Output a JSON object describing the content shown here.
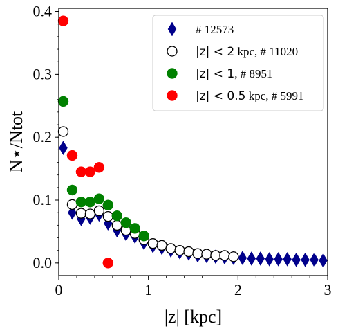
{
  "chart_data": {
    "type": "scatter",
    "xlabel": "|z| [kpc]",
    "ylabel": "N⋆/Ntot",
    "xlim": [
      0,
      3
    ],
    "ylim": [
      -0.02,
      0.405
    ],
    "xticks": [
      "0",
      "1",
      "2",
      "3"
    ],
    "yticks": [
      "0.0",
      "0.1",
      "0.2",
      "0.3",
      "0.4"
    ],
    "legend_position": "top-right",
    "series": [
      {
        "name": "# 12573",
        "label_math": "",
        "label_text": "# 12573",
        "marker": "thin_diamond",
        "color": "#00008b",
        "x": [
          0.05,
          0.15,
          0.25,
          0.35,
          0.45,
          0.55,
          0.65,
          0.75,
          0.85,
          0.95,
          1.05,
          1.15,
          1.25,
          1.35,
          1.45,
          1.55,
          1.65,
          1.75,
          1.85,
          1.95,
          2.05,
          2.15,
          2.25,
          2.35,
          2.45,
          2.55,
          2.65,
          2.75,
          2.85,
          2.95
        ],
        "y": [
          0.183,
          0.08,
          0.07,
          0.072,
          0.077,
          0.063,
          0.052,
          0.046,
          0.042,
          0.032,
          0.027,
          0.024,
          0.02,
          0.017,
          0.015,
          0.012,
          0.011,
          0.01,
          0.009,
          0.008,
          0.008,
          0.007,
          0.007,
          0.006,
          0.006,
          0.006,
          0.005,
          0.005,
          0.005,
          0.004
        ]
      },
      {
        "name": "|z| < 2 kpc, # 11020",
        "label_math": "|z| < 2",
        "label_text": " kpc, # 11020",
        "marker": "open_circle",
        "color": "#000000",
        "x": [
          0.05,
          0.15,
          0.25,
          0.35,
          0.45,
          0.55,
          0.65,
          0.75,
          0.85,
          0.95,
          1.05,
          1.15,
          1.25,
          1.35,
          1.45,
          1.55,
          1.65,
          1.75,
          1.85,
          1.95
        ],
        "y": [
          0.209,
          0.093,
          0.079,
          0.078,
          0.083,
          0.074,
          0.06,
          0.052,
          0.047,
          0.037,
          0.031,
          0.028,
          0.023,
          0.02,
          0.018,
          0.015,
          0.014,
          0.012,
          0.012,
          0.01
        ]
      },
      {
        "name": "|z| < 1, # 8951",
        "label_math": "|z| < 1",
        "label_text": ", # 8951",
        "marker": "filled_circle",
        "color": "#008000",
        "x": [
          0.05,
          0.15,
          0.25,
          0.35,
          0.45,
          0.55,
          0.65,
          0.75,
          0.85,
          0.95
        ],
        "y": [
          0.257,
          0.116,
          0.097,
          0.097,
          0.102,
          0.092,
          0.075,
          0.064,
          0.055,
          0.043
        ]
      },
      {
        "name": "|z| < 0.5 kpc, # 5991",
        "label_math": "|z| < 0.5",
        "label_text": " kpc, # 5991",
        "marker": "filled_circle",
        "color": "#ff0000",
        "x": [
          0.05,
          0.15,
          0.25,
          0.35,
          0.45,
          0.55
        ],
        "y": [
          0.385,
          0.171,
          0.145,
          0.145,
          0.152,
          0.0
        ]
      }
    ]
  }
}
